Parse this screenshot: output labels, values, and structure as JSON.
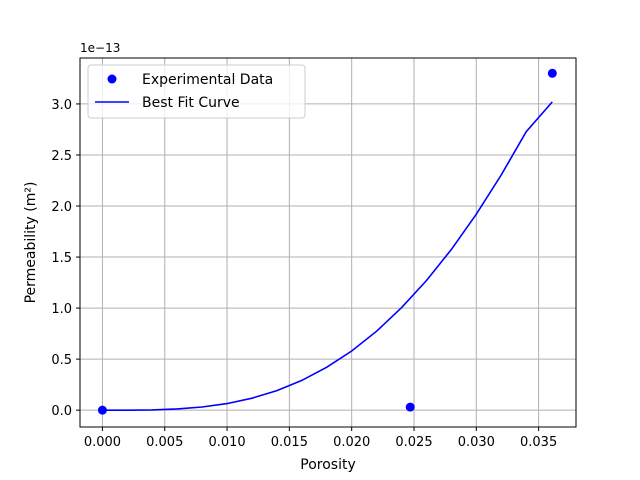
{
  "chart_data": {
    "type": "scatter",
    "xlabel": "Porosity",
    "ylabel": "Permeability (m²)",
    "y_offset_label": "1e−13",
    "xlim": [
      -0.0018,
      0.038
    ],
    "ylim": [
      -0.165,
      3.45
    ],
    "x_ticks": [
      0.0,
      0.005,
      0.01,
      0.015,
      0.02,
      0.025,
      0.03,
      0.035
    ],
    "x_tick_labels": [
      "0.000",
      "0.005",
      "0.010",
      "0.015",
      "0.020",
      "0.025",
      "0.030",
      "0.035"
    ],
    "y_ticks": [
      0.0,
      0.5,
      1.0,
      1.5,
      2.0,
      2.5,
      3.0
    ],
    "y_tick_labels": [
      "0.0",
      "0.5",
      "1.0",
      "1.5",
      "2.0",
      "2.5",
      "3.0"
    ],
    "grid": true,
    "legend_position": "top-left",
    "series": [
      {
        "name": "Experimental Data",
        "kind": "scatter",
        "color": "#0000ff",
        "x": [
          0.0,
          0.0247,
          0.0361
        ],
        "y": [
          0.0,
          0.03,
          3.3
        ]
      },
      {
        "name": "Best Fit Curve",
        "kind": "line",
        "color": "#0000ff",
        "x": [
          0.0,
          0.002,
          0.004,
          0.006,
          0.008,
          0.01,
          0.012,
          0.014,
          0.016,
          0.018,
          0.02,
          0.022,
          0.024,
          0.026,
          0.028,
          0.03,
          0.032,
          0.034,
          0.0361
        ],
        "y": [
          0.0,
          0.0,
          0.003,
          0.012,
          0.031,
          0.064,
          0.117,
          0.192,
          0.292,
          0.421,
          0.58,
          0.774,
          1.004,
          1.27,
          1.575,
          1.92,
          2.304,
          2.728,
          3.02
        ]
      }
    ]
  }
}
